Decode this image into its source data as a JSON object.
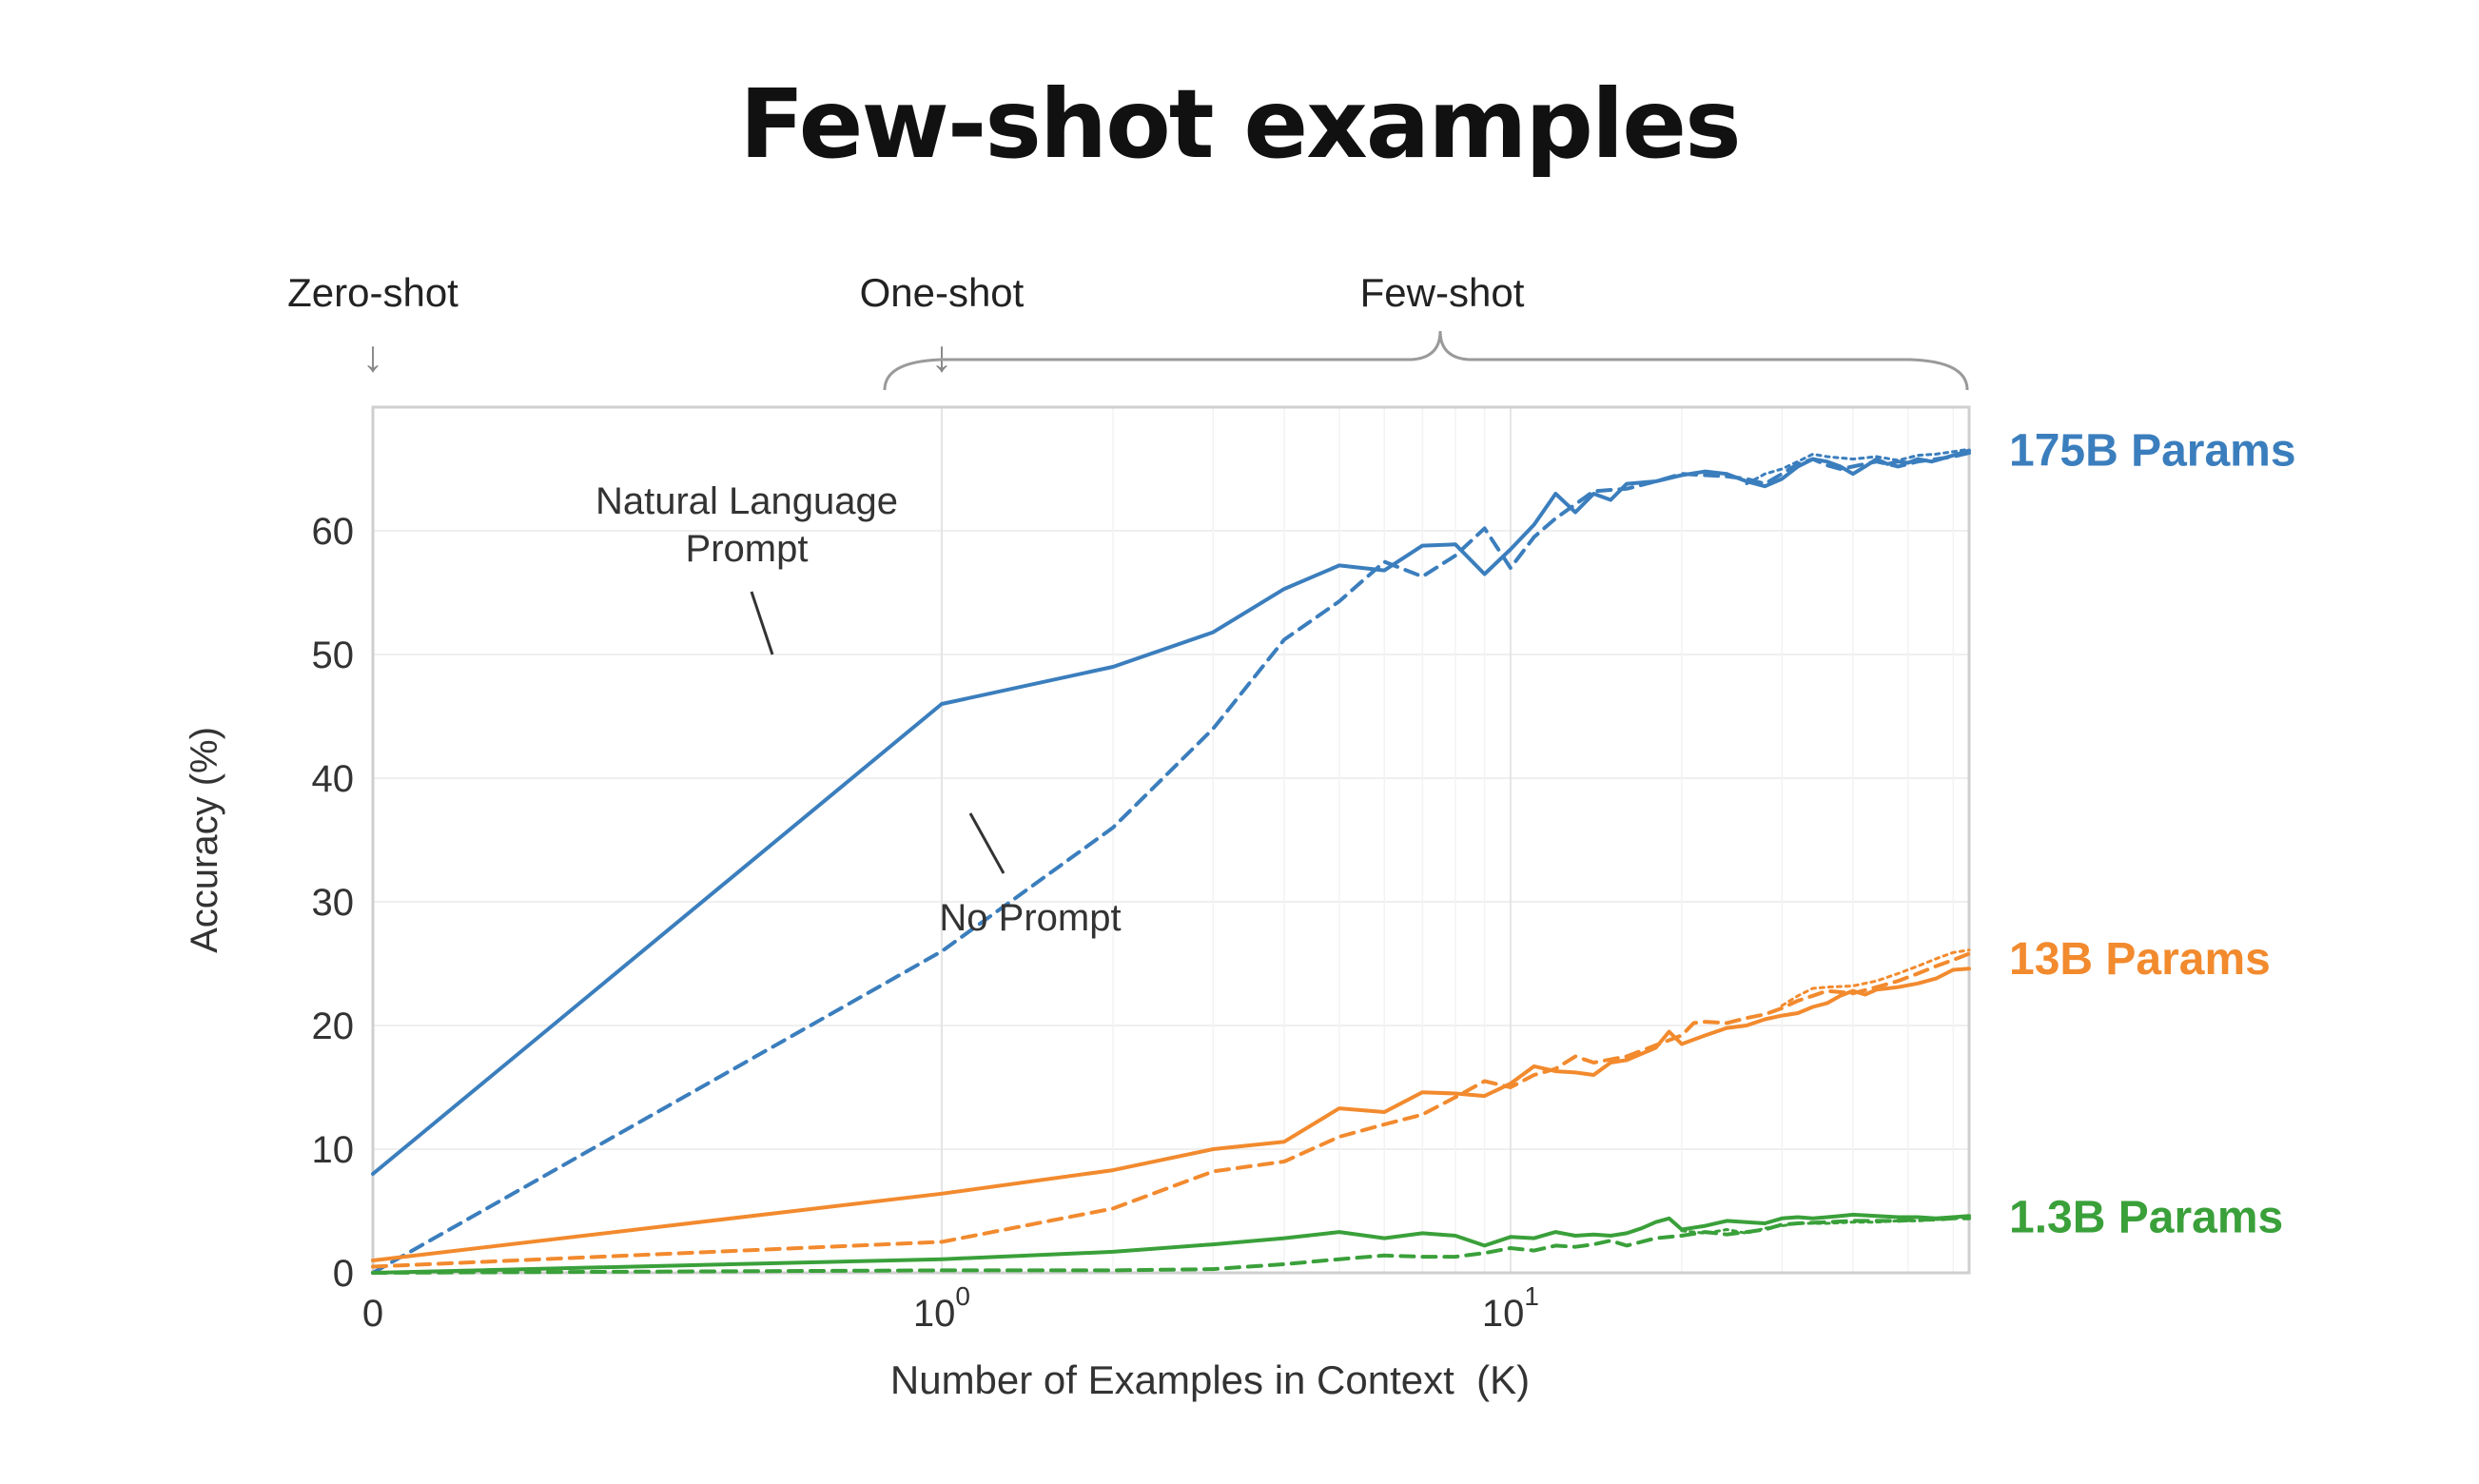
{
  "page": {
    "title": "Few-shot examples"
  },
  "colors": {
    "series_175b": "#3b7ebd",
    "series_13b": "#f28a2e",
    "series_1_3b": "#3aa03a",
    "axis": "#cfcfcf",
    "grid": "#efefef",
    "text": "#333333",
    "bracket": "#9a9a9a"
  },
  "regimes": {
    "zero_shot": "Zero-shot",
    "one_shot": "One-shot",
    "few_shot": "Few-shot",
    "arrow_glyph": "↓"
  },
  "annotations": {
    "nl_prompt_line1": "Natural Language",
    "nl_prompt_line2": "Prompt",
    "no_prompt": "No Prompt"
  },
  "chart_data": {
    "type": "line",
    "title": "",
    "xlabel": "Number of Examples in Context  (K)",
    "ylabel": "Accuracy (%)",
    "x_scale": "symlog",
    "xlim": [
      0,
      64
    ],
    "ylim": [
      0,
      70
    ],
    "grid": true,
    "y_ticks": [
      0,
      10,
      20,
      30,
      40,
      50,
      60
    ],
    "y_tick_labels": [
      "0",
      "10",
      "20",
      "30",
      "40",
      "50",
      "60"
    ],
    "x_ticks": [
      {
        "value": 0,
        "base": "0",
        "exp": ""
      },
      {
        "value": 1,
        "base": "10",
        "exp": "0"
      },
      {
        "value": 10,
        "base": "10",
        "exp": "1"
      }
    ],
    "series": [
      {
        "name": "175B Params",
        "color_key": "series_175b",
        "style": "solid",
        "points": [
          [
            0,
            8
          ],
          [
            1,
            46
          ],
          [
            2,
            49
          ],
          [
            3,
            51.8
          ],
          [
            4,
            55.3
          ],
          [
            5,
            57.2
          ],
          [
            6,
            56.8
          ],
          [
            7,
            58.8
          ],
          [
            8,
            58.9
          ],
          [
            9,
            56.5
          ],
          [
            10,
            58.5
          ],
          [
            11,
            60.5
          ],
          [
            12,
            63
          ],
          [
            13,
            61.5
          ],
          [
            14,
            63
          ],
          [
            15,
            62.5
          ],
          [
            16,
            63.8
          ],
          [
            18,
            64
          ],
          [
            20,
            64.5
          ],
          [
            22,
            64.8
          ],
          [
            24,
            64.6
          ],
          [
            26,
            64
          ],
          [
            28,
            63.6
          ],
          [
            30,
            64.2
          ],
          [
            32,
            65.2
          ],
          [
            34,
            65.8
          ],
          [
            36,
            65.6
          ],
          [
            38,
            65.2
          ],
          [
            40,
            64.6
          ],
          [
            42,
            65.2
          ],
          [
            44,
            65.8
          ],
          [
            46,
            65.4
          ],
          [
            48,
            65.6
          ],
          [
            50,
            65.5
          ],
          [
            52,
            65.8
          ],
          [
            55,
            65.6
          ],
          [
            58,
            65.9
          ],
          [
            61,
            66.2
          ],
          [
            64,
            66.5
          ]
        ]
      },
      {
        "name": "175B Params",
        "color_key": "series_175b",
        "style": "dashed",
        "points": [
          [
            0,
            0
          ],
          [
            1,
            26
          ],
          [
            2,
            36
          ],
          [
            3,
            44
          ],
          [
            4,
            51.2
          ],
          [
            5,
            54.3
          ],
          [
            6,
            57.5
          ],
          [
            7,
            56.3
          ],
          [
            8,
            58
          ],
          [
            9,
            60.2
          ],
          [
            10,
            57
          ],
          [
            11,
            59.5
          ],
          [
            12,
            61
          ],
          [
            14,
            63.2
          ],
          [
            16,
            63.4
          ],
          [
            18,
            64
          ],
          [
            20,
            64.6
          ],
          [
            22,
            64.5
          ],
          [
            24,
            64.4
          ],
          [
            26,
            64.2
          ],
          [
            28,
            63.8
          ],
          [
            30,
            64.6
          ],
          [
            32,
            65.4
          ],
          [
            34,
            65.8
          ],
          [
            36,
            65.3
          ],
          [
            38,
            65
          ],
          [
            40,
            65.2
          ],
          [
            44,
            65.6
          ],
          [
            48,
            65.2
          ],
          [
            52,
            65.6
          ],
          [
            56,
            65.8
          ],
          [
            60,
            66
          ],
          [
            64,
            66.3
          ]
        ]
      },
      {
        "name": "175B Params",
        "color_key": "series_175b",
        "style": "dotted",
        "points": [
          [
            26,
            63.8
          ],
          [
            28,
            64.6
          ],
          [
            30,
            65
          ],
          [
            32,
            65.6
          ],
          [
            34,
            66.2
          ],
          [
            36,
            66
          ],
          [
            40,
            65.8
          ],
          [
            44,
            66
          ],
          [
            48,
            65.7
          ],
          [
            52,
            66.1
          ],
          [
            56,
            66.2
          ],
          [
            60,
            66.4
          ],
          [
            64,
            66.6
          ]
        ]
      },
      {
        "name": "13B Params",
        "color_key": "series_13b",
        "style": "solid",
        "points": [
          [
            0,
            1
          ],
          [
            1,
            6.4
          ],
          [
            2,
            8.3
          ],
          [
            3,
            10
          ],
          [
            4,
            10.6
          ],
          [
            5,
            13.3
          ],
          [
            6,
            13
          ],
          [
            7,
            14.6
          ],
          [
            8,
            14.5
          ],
          [
            9,
            14.3
          ],
          [
            10,
            15.3
          ],
          [
            11,
            16.7
          ],
          [
            12,
            16.3
          ],
          [
            13,
            16.2
          ],
          [
            14,
            16
          ],
          [
            15,
            17
          ],
          [
            16,
            17.2
          ],
          [
            18,
            18.2
          ],
          [
            19,
            19.5
          ],
          [
            20,
            18.5
          ],
          [
            22,
            19.2
          ],
          [
            24,
            19.8
          ],
          [
            26,
            20
          ],
          [
            28,
            20.5
          ],
          [
            30,
            20.8
          ],
          [
            32,
            21
          ],
          [
            34,
            21.5
          ],
          [
            36,
            21.8
          ],
          [
            38,
            22.4
          ],
          [
            40,
            22.8
          ],
          [
            42,
            22.5
          ],
          [
            44,
            22.9
          ],
          [
            46,
            23
          ],
          [
            48,
            23.1
          ],
          [
            52,
            23.4
          ],
          [
            56,
            23.8
          ],
          [
            60,
            24.5
          ],
          [
            64,
            24.6
          ]
        ]
      },
      {
        "name": "13B Params",
        "color_key": "series_13b",
        "style": "dashed",
        "points": [
          [
            0,
            0.5
          ],
          [
            1,
            2.5
          ],
          [
            2,
            5.2
          ],
          [
            3,
            8.2
          ],
          [
            4,
            9
          ],
          [
            5,
            11
          ],
          [
            6,
            12
          ],
          [
            7,
            12.8
          ],
          [
            8,
            14.2
          ],
          [
            9,
            15.5
          ],
          [
            10,
            15
          ],
          [
            11,
            16
          ],
          [
            12,
            16.5
          ],
          [
            13,
            17.5
          ],
          [
            14,
            17
          ],
          [
            16,
            17.5
          ],
          [
            18,
            18.4
          ],
          [
            20,
            19.2
          ],
          [
            21,
            20.2
          ],
          [
            22,
            20.3
          ],
          [
            24,
            20.2
          ],
          [
            26,
            20.6
          ],
          [
            28,
            20.9
          ],
          [
            30,
            21.4
          ],
          [
            32,
            22
          ],
          [
            34,
            22.4
          ],
          [
            36,
            22.8
          ],
          [
            40,
            22.6
          ],
          [
            44,
            23.1
          ],
          [
            48,
            23.6
          ],
          [
            52,
            24.2
          ],
          [
            56,
            24.8
          ],
          [
            60,
            25.3
          ],
          [
            64,
            25.8
          ]
        ]
      },
      {
        "name": "13B Params",
        "color_key": "series_13b",
        "style": "dotted",
        "points": [
          [
            30,
            21.6
          ],
          [
            32,
            22.4
          ],
          [
            34,
            23
          ],
          [
            36,
            23.1
          ],
          [
            40,
            23.2
          ],
          [
            44,
            23.6
          ],
          [
            48,
            24.2
          ],
          [
            52,
            24.8
          ],
          [
            56,
            25.4
          ],
          [
            60,
            25.9
          ],
          [
            64,
            26.1
          ]
        ]
      },
      {
        "name": "1.3B Params",
        "color_key": "series_1_3b",
        "style": "solid",
        "points": [
          [
            0,
            0
          ],
          [
            1,
            1.1
          ],
          [
            2,
            1.7
          ],
          [
            3,
            2.3
          ],
          [
            4,
            2.8
          ],
          [
            5,
            3.3
          ],
          [
            6,
            2.8
          ],
          [
            7,
            3.2
          ],
          [
            8,
            3
          ],
          [
            9,
            2.2
          ],
          [
            10,
            2.9
          ],
          [
            11,
            2.8
          ],
          [
            12,
            3.3
          ],
          [
            13,
            3
          ],
          [
            14,
            3.1
          ],
          [
            15,
            3
          ],
          [
            16,
            3.2
          ],
          [
            17,
            3.6
          ],
          [
            18,
            4.1
          ],
          [
            19,
            4.4
          ],
          [
            20,
            3.5
          ],
          [
            22,
            3.8
          ],
          [
            24,
            4.2
          ],
          [
            26,
            4.1
          ],
          [
            28,
            4
          ],
          [
            30,
            4.4
          ],
          [
            32,
            4.5
          ],
          [
            34,
            4.4
          ],
          [
            36,
            4.5
          ],
          [
            38,
            4.6
          ],
          [
            40,
            4.7
          ],
          [
            44,
            4.6
          ],
          [
            48,
            4.5
          ],
          [
            52,
            4.5
          ],
          [
            56,
            4.4
          ],
          [
            60,
            4.5
          ],
          [
            64,
            4.6
          ]
        ]
      },
      {
        "name": "1.3B Params",
        "color_key": "series_1_3b",
        "style": "dashed",
        "points": [
          [
            0,
            0
          ],
          [
            1,
            0.2
          ],
          [
            2,
            0.2
          ],
          [
            3,
            0.3
          ],
          [
            4,
            0.7
          ],
          [
            5,
            1.1
          ],
          [
            6,
            1.4
          ],
          [
            7,
            1.3
          ],
          [
            8,
            1.3
          ],
          [
            9,
            1.6
          ],
          [
            10,
            2
          ],
          [
            11,
            1.8
          ],
          [
            12,
            2.2
          ],
          [
            13,
            2.1
          ],
          [
            14,
            2.3
          ],
          [
            15,
            2.6
          ],
          [
            16,
            2.2
          ],
          [
            18,
            2.8
          ],
          [
            20,
            3
          ],
          [
            22,
            3.3
          ],
          [
            24,
            3.1
          ],
          [
            26,
            3.3
          ],
          [
            28,
            3.5
          ],
          [
            30,
            3.9
          ],
          [
            32,
            4
          ],
          [
            36,
            4.1
          ],
          [
            40,
            4.2
          ],
          [
            44,
            4.2
          ],
          [
            48,
            4.2
          ],
          [
            52,
            4.3
          ],
          [
            56,
            4.3
          ],
          [
            60,
            4.4
          ],
          [
            64,
            4.4
          ]
        ]
      },
      {
        "name": "1.3B Params",
        "color_key": "series_1_3b",
        "style": "dotted",
        "points": [
          [
            20,
            3.4
          ],
          [
            22,
            3.2
          ],
          [
            24,
            3.5
          ],
          [
            26,
            3.2
          ],
          [
            28,
            3.6
          ],
          [
            30,
            3.8
          ],
          [
            32,
            4
          ],
          [
            36,
            4
          ],
          [
            40,
            4.1
          ],
          [
            44,
            4.1
          ],
          [
            48,
            4.2
          ],
          [
            52,
            4.2
          ],
          [
            56,
            4.3
          ],
          [
            60,
            4.4
          ],
          [
            64,
            4.5
          ]
        ]
      }
    ],
    "series_labels": [
      {
        "name": "175B Params",
        "color_key": "series_175b",
        "at_y": 66.5
      },
      {
        "name": "13B Params",
        "color_key": "series_13b",
        "at_y": 25.4
      },
      {
        "name": "1.3B Params",
        "color_key": "series_1_3b",
        "at_y": 4.5
      }
    ]
  }
}
